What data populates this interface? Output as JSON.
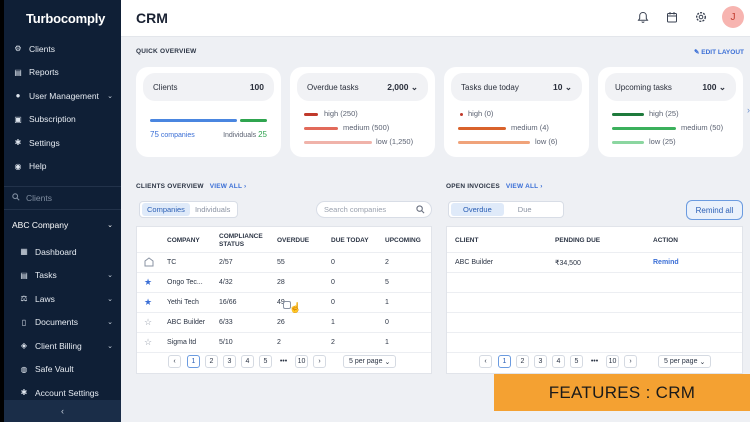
{
  "app": {
    "logo": "Turbocomply",
    "page_title": "CRM",
    "avatar_initial": "J"
  },
  "sidebar": {
    "items": [
      {
        "label": "Clients",
        "icon": "clients-icon"
      },
      {
        "label": "Reports",
        "icon": "reports-icon"
      },
      {
        "label": "User Management",
        "icon": "user-icon",
        "chevron": true
      },
      {
        "label": "Subscription",
        "icon": "subscription-icon"
      },
      {
        "label": "Settings",
        "icon": "gear-icon"
      },
      {
        "label": "Help",
        "icon": "help-icon"
      }
    ],
    "search_placeholder": "Clients",
    "company": "ABC Company",
    "sub_items": [
      {
        "label": "Dashboard",
        "icon": "dashboard-icon"
      },
      {
        "label": "Tasks",
        "icon": "tasks-icon",
        "chevron": true
      },
      {
        "label": "Laws",
        "icon": "laws-icon",
        "chevron": true
      },
      {
        "label": "Documents",
        "icon": "documents-icon",
        "chevron": true
      },
      {
        "label": "Client Billing",
        "icon": "billing-icon",
        "chevron": true
      },
      {
        "label": "Safe Vault",
        "icon": "vault-icon"
      },
      {
        "label": "Account Settings",
        "icon": "account-settings-icon"
      }
    ],
    "collapse_glyph": "‹"
  },
  "quick_overview": {
    "label": "QUICK OVERVIEW",
    "edit_layout": "EDIT LAYOUT",
    "clients": {
      "title": "Clients",
      "count": "100",
      "companies_count": "75",
      "companies_label": "companies",
      "individuals_label": "Individuals",
      "individuals_count": "25"
    },
    "overdue": {
      "title": "Overdue tasks",
      "count": "2,000",
      "high": "high (250)",
      "medium": "medium (500)",
      "low": "low (1,250)"
    },
    "due_today": {
      "title": "Tasks due today",
      "count": "10",
      "high": "high (0)",
      "medium": "medium (4)",
      "low": "low (6)"
    },
    "upcoming": {
      "title": "Upcoming tasks",
      "count": "100",
      "high": "high (25)",
      "medium": "medium (50)",
      "low": "low (25)"
    },
    "colors": {
      "blue": "#4a86e0",
      "green": "#2fa44f",
      "red_high": "#c0392b",
      "red_medium": "#e26a5a",
      "red_low": "#f0b3aa",
      "orange": "#d9622b",
      "orange_low": "#f0a37a",
      "green_high": "#1e7a3c",
      "green_medium": "#3bb05c",
      "green_low": "#8bd6a0"
    }
  },
  "clients_overview": {
    "label": "CLIENTS OVERVIEW",
    "view_all": "VIEW ALL ›",
    "tabs": [
      "Companies",
      "Individuals"
    ],
    "search_placeholder": "Search companies",
    "columns": [
      "COMPANY",
      "COMPLIANCE STATUS",
      "OVERDUE",
      "DUE TODAY",
      "UPCOMING"
    ],
    "rows": [
      {
        "icon": "building-icon",
        "company": "TC",
        "compliance": "2/57",
        "overdue": "55",
        "due_today": "0",
        "upcoming": "2"
      },
      {
        "icon": "star-filled-icon",
        "company": "Ongo Tec...",
        "compliance": "4/32",
        "overdue": "28",
        "due_today": "0",
        "upcoming": "5"
      },
      {
        "icon": "star-filled-icon",
        "company": "Yethi Tech",
        "compliance": "16/66",
        "overdue": "49",
        "due_today": "0",
        "upcoming": "1"
      },
      {
        "icon": "star-outline-icon",
        "company": "ABC Builder",
        "compliance": "6/33",
        "overdue": "26",
        "due_today": "1",
        "upcoming": "0"
      },
      {
        "icon": "star-outline-icon",
        "company": "Sigma ltd",
        "compliance": "5/10",
        "overdue": "2",
        "due_today": "2",
        "upcoming": "1"
      }
    ],
    "pagination": [
      "1",
      "2",
      "3",
      "4",
      "5",
      "•••",
      "10"
    ],
    "per_page": "5 per page"
  },
  "open_invoices": {
    "label": "OPEN INVOICES",
    "view_all": "VIEW ALL ›",
    "tabs": [
      "Overdue",
      "Due"
    ],
    "remind_all": "Remind all",
    "columns": [
      "CLIENT",
      "PENDING DUE",
      "ACTION"
    ],
    "rows": [
      {
        "client": "ABC Builder",
        "pending": "₹34,500",
        "action": "Remind"
      }
    ],
    "pagination": [
      "1",
      "2",
      "3",
      "4",
      "5",
      "•••",
      "10"
    ],
    "per_page": "5 per page"
  },
  "banner": "FEATURES : CRM"
}
